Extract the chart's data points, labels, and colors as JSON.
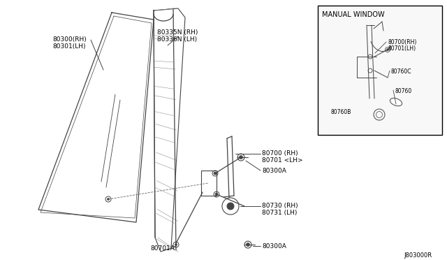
{
  "background_color": "#ffffff",
  "line_color": "#444444",
  "text_color": "#000000",
  "diagram_code": "J803000R",
  "inset_title": "MANUAL WINDOW",
  "figsize": [
    6.4,
    3.72
  ],
  "dpi": 100,
  "labels": {
    "glass_rh": "80300(RH)",
    "glass_lh": "80301(LH)",
    "ws_rh": "80335N (RH)",
    "ws_lh": "80336N (LH)",
    "reg_rh": "80700 (RH)",
    "reg_lh": "80701 <LH>",
    "bolt1": "80300A",
    "bolt2": "80300A",
    "handle_rh": "80730 (RH)",
    "handle_lh": "80731 (LH)",
    "arm_a": "80701A",
    "inset_reg_rh": "80700(RH)",
    "inset_reg_lh": "80701(LH)",
    "inset_760c": "80760C",
    "inset_760": "80760",
    "inset_760b": "80760B"
  }
}
